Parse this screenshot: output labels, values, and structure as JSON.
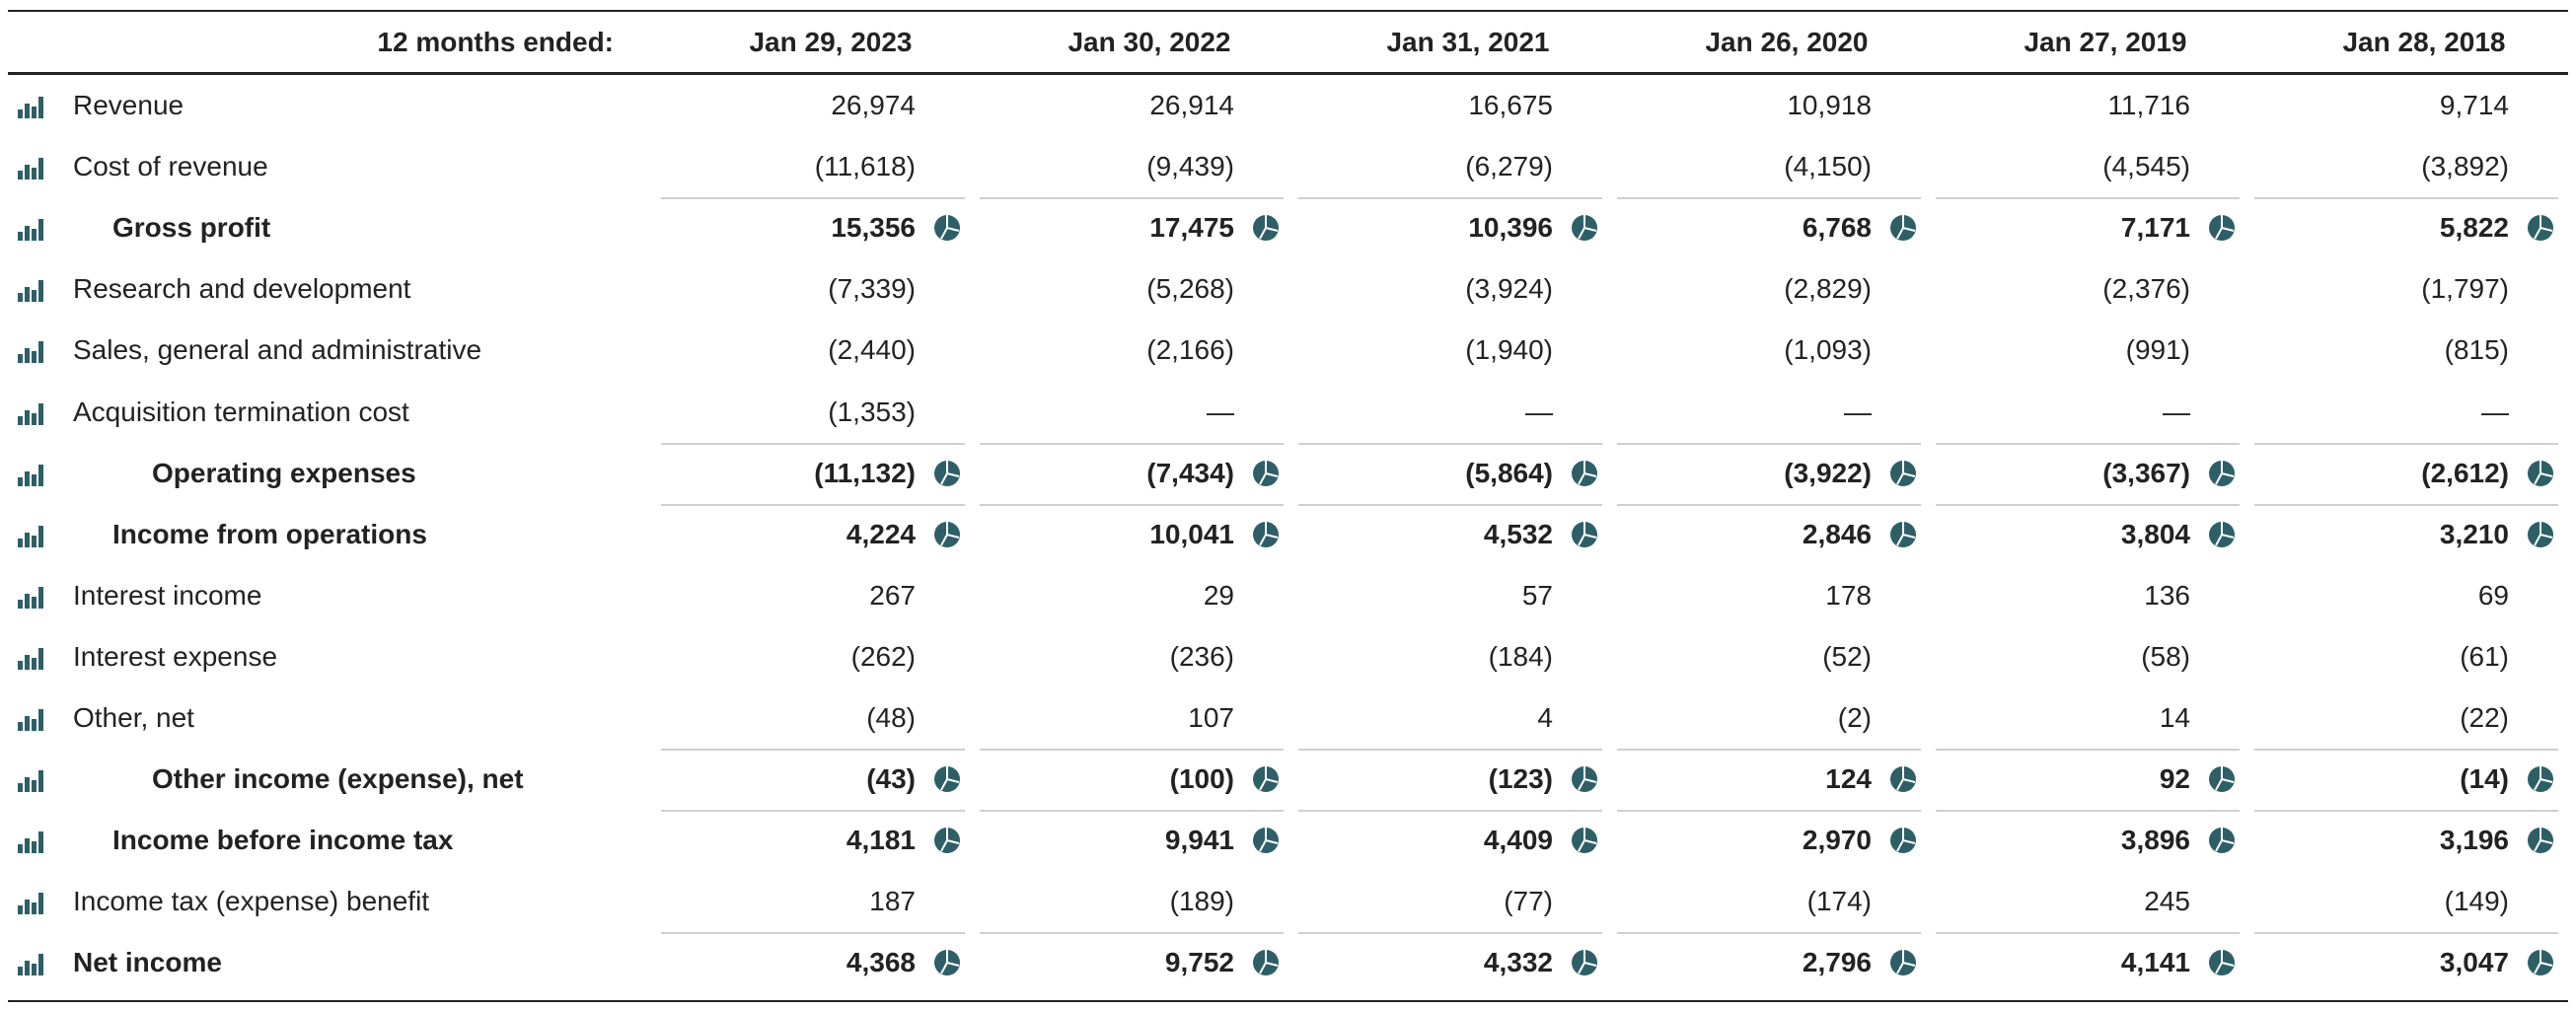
{
  "header": {
    "period_label": "12 months ended:",
    "columns": [
      "Jan 29, 2023",
      "Jan 30, 2022",
      "Jan 31, 2021",
      "Jan 26, 2020",
      "Jan 27, 2019",
      "Jan 28, 2018"
    ]
  },
  "colors": {
    "icon": "#2e5f66",
    "text": "#222222",
    "rule": "#222222",
    "separator": "#cfcfcf"
  },
  "icons": {
    "row_icon": "bar-chart-icon",
    "subtotal_icon": "pie-chart-icon"
  },
  "rows": [
    {
      "label": "Revenue",
      "indent": 0,
      "bold": false,
      "subtotal": false,
      "values": [
        "26,974",
        "26,914",
        "16,675",
        "10,918",
        "11,716",
        "9,714"
      ]
    },
    {
      "label": "Cost of revenue",
      "indent": 0,
      "bold": false,
      "subtotal": false,
      "values": [
        "(11,618)",
        "(9,439)",
        "(6,279)",
        "(4,150)",
        "(4,545)",
        "(3,892)"
      ]
    },
    {
      "label": "Gross profit",
      "indent": 1,
      "bold": true,
      "subtotal": true,
      "values": [
        "15,356",
        "17,475",
        "10,396",
        "6,768",
        "7,171",
        "5,822"
      ]
    },
    {
      "label": "Research and development",
      "indent": 0,
      "bold": false,
      "subtotal": false,
      "values": [
        "(7,339)",
        "(5,268)",
        "(3,924)",
        "(2,829)",
        "(2,376)",
        "(1,797)"
      ]
    },
    {
      "label": "Sales, general and administrative",
      "indent": 0,
      "bold": false,
      "subtotal": false,
      "values": [
        "(2,440)",
        "(2,166)",
        "(1,940)",
        "(1,093)",
        "(991)",
        "(815)"
      ]
    },
    {
      "label": "Acquisition termination cost",
      "indent": 0,
      "bold": false,
      "subtotal": false,
      "values": [
        "(1,353)",
        "—",
        "—",
        "—",
        "—",
        "—"
      ]
    },
    {
      "label": "Operating expenses",
      "indent": 2,
      "bold": true,
      "subtotal": true,
      "values": [
        "(11,132)",
        "(7,434)",
        "(5,864)",
        "(3,922)",
        "(3,367)",
        "(2,612)"
      ]
    },
    {
      "label": "Income from operations",
      "indent": 1,
      "bold": true,
      "subtotal": true,
      "values": [
        "4,224",
        "10,041",
        "4,532",
        "2,846",
        "3,804",
        "3,210"
      ]
    },
    {
      "label": "Interest income",
      "indent": 0,
      "bold": false,
      "subtotal": false,
      "values": [
        "267",
        "29",
        "57",
        "178",
        "136",
        "69"
      ]
    },
    {
      "label": "Interest expense",
      "indent": 0,
      "bold": false,
      "subtotal": false,
      "values": [
        "(262)",
        "(236)",
        "(184)",
        "(52)",
        "(58)",
        "(61)"
      ]
    },
    {
      "label": "Other, net",
      "indent": 0,
      "bold": false,
      "subtotal": false,
      "values": [
        "(48)",
        "107",
        "4",
        "(2)",
        "14",
        "(22)"
      ]
    },
    {
      "label": "Other income (expense), net",
      "indent": 2,
      "bold": true,
      "subtotal": true,
      "values": [
        "(43)",
        "(100)",
        "(123)",
        "124",
        "92",
        "(14)"
      ]
    },
    {
      "label": "Income before income tax",
      "indent": 1,
      "bold": true,
      "subtotal": true,
      "values": [
        "4,181",
        "9,941",
        "4,409",
        "2,970",
        "3,896",
        "3,196"
      ]
    },
    {
      "label": "Income tax (expense) benefit",
      "indent": 0,
      "bold": false,
      "subtotal": false,
      "values": [
        "187",
        "(189)",
        "(77)",
        "(174)",
        "245",
        "(149)"
      ]
    },
    {
      "label": "Net income",
      "indent": 0,
      "bold": true,
      "subtotal": true,
      "values": [
        "4,368",
        "9,752",
        "4,332",
        "2,796",
        "4,141",
        "3,047"
      ]
    }
  ]
}
